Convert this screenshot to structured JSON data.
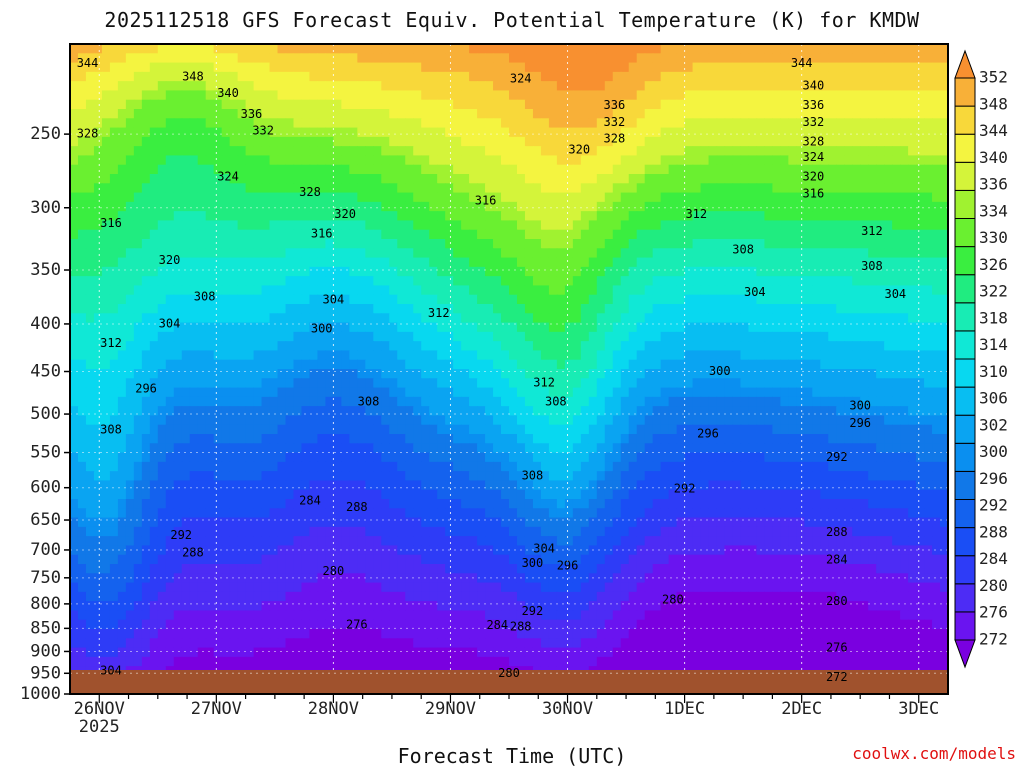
{
  "chart_data": {
    "type": "heatmap",
    "title": "2025112518 GFS Forecast Equiv. Potential Temperature (K) for KMDW",
    "xlabel": "Forecast Time (UTC)",
    "ylabel": "",
    "x_ticks": [
      "26NOV",
      "27NOV",
      "28NOV",
      "29NOV",
      "30NOV",
      "1DEC",
      "2DEC",
      "3DEC"
    ],
    "x_year_label": "2025",
    "x_range_days": [
      25.75,
      33.25
    ],
    "y_ticks": [
      250,
      300,
      350,
      400,
      450,
      500,
      550,
      600,
      650,
      700,
      750,
      800,
      850,
      900,
      950,
      1000
    ],
    "y_range_hPa": [
      200,
      1000
    ],
    "colorbar": {
      "levels": [
        272,
        276,
        280,
        284,
        288,
        292,
        296,
        300,
        302,
        306,
        310,
        314,
        318,
        322,
        326,
        330,
        334,
        336,
        340,
        344,
        348,
        352
      ],
      "colors": [
        "#7a00e0",
        "#6a14f0",
        "#4d2cf5",
        "#2e3cf7",
        "#1a4ef5",
        "#1462ee",
        "#1178e8",
        "#0a8ff0",
        "#0aa4f2",
        "#08bef2",
        "#08d8f0",
        "#10e8d6",
        "#18ecb4",
        "#20ec80",
        "#3aee40",
        "#6af030",
        "#a0f230",
        "#d4f43a",
        "#f4f440",
        "#f8d83a",
        "#f8b038",
        "#f89030"
      ]
    },
    "ground_color": "#a0522d",
    "contour_labels": [
      {
        "text": "344",
        "x": 25.9,
        "y": 210
      },
      {
        "text": "348",
        "x": 26.8,
        "y": 217
      },
      {
        "text": "340",
        "x": 27.1,
        "y": 226
      },
      {
        "text": "336",
        "x": 27.3,
        "y": 238
      },
      {
        "text": "332",
        "x": 27.4,
        "y": 248
      },
      {
        "text": "328",
        "x": 25.9,
        "y": 250
      },
      {
        "text": "324",
        "x": 27.1,
        "y": 278
      },
      {
        "text": "328",
        "x": 27.8,
        "y": 289
      },
      {
        "text": "320",
        "x": 28.1,
        "y": 305
      },
      {
        "text": "316",
        "x": 26.1,
        "y": 312
      },
      {
        "text": "316",
        "x": 27.9,
        "y": 320
      },
      {
        "text": "320",
        "x": 26.6,
        "y": 342
      },
      {
        "text": "324",
        "x": 29.6,
        "y": 218
      },
      {
        "text": "336",
        "x": 30.4,
        "y": 233
      },
      {
        "text": "332",
        "x": 30.4,
        "y": 243
      },
      {
        "text": "328",
        "x": 30.4,
        "y": 253
      },
      {
        "text": "320",
        "x": 30.1,
        "y": 260
      },
      {
        "text": "316",
        "x": 29.3,
        "y": 295
      },
      {
        "text": "312",
        "x": 31.1,
        "y": 305
      },
      {
        "text": "344",
        "x": 32.0,
        "y": 210
      },
      {
        "text": "340",
        "x": 32.1,
        "y": 222
      },
      {
        "text": "336",
        "x": 32.1,
        "y": 233
      },
      {
        "text": "332",
        "x": 32.1,
        "y": 243
      },
      {
        "text": "328",
        "x": 32.1,
        "y": 255
      },
      {
        "text": "324",
        "x": 32.1,
        "y": 265
      },
      {
        "text": "320",
        "x": 32.1,
        "y": 278
      },
      {
        "text": "316",
        "x": 32.1,
        "y": 290
      },
      {
        "text": "312",
        "x": 32.6,
        "y": 318
      },
      {
        "text": "308",
        "x": 32.6,
        "y": 347
      },
      {
        "text": "308",
        "x": 31.5,
        "y": 333
      },
      {
        "text": "304",
        "x": 32.8,
        "y": 372
      },
      {
        "text": "304",
        "x": 31.6,
        "y": 370
      },
      {
        "text": "308",
        "x": 26.9,
        "y": 374
      },
      {
        "text": "304",
        "x": 28.0,
        "y": 377
      },
      {
        "text": "312",
        "x": 28.9,
        "y": 390
      },
      {
        "text": "304",
        "x": 26.6,
        "y": 400
      },
      {
        "text": "300",
        "x": 27.9,
        "y": 405
      },
      {
        "text": "312",
        "x": 26.1,
        "y": 420
      },
      {
        "text": "300",
        "x": 31.3,
        "y": 450
      },
      {
        "text": "312",
        "x": 29.8,
        "y": 463
      },
      {
        "text": "296",
        "x": 26.4,
        "y": 470
      },
      {
        "text": "308",
        "x": 28.3,
        "y": 485
      },
      {
        "text": "308",
        "x": 29.9,
        "y": 485
      },
      {
        "text": "300",
        "x": 32.5,
        "y": 490
      },
      {
        "text": "308",
        "x": 26.1,
        "y": 520
      },
      {
        "text": "296",
        "x": 31.2,
        "y": 525
      },
      {
        "text": "296",
        "x": 32.5,
        "y": 512
      },
      {
        "text": "292",
        "x": 32.3,
        "y": 557
      },
      {
        "text": "308",
        "x": 29.7,
        "y": 583
      },
      {
        "text": "292",
        "x": 31.0,
        "y": 602
      },
      {
        "text": "284",
        "x": 27.8,
        "y": 620
      },
      {
        "text": "288",
        "x": 28.2,
        "y": 630
      },
      {
        "text": "288",
        "x": 32.3,
        "y": 670
      },
      {
        "text": "292",
        "x": 26.7,
        "y": 675
      },
      {
        "text": "304",
        "x": 29.8,
        "y": 698
      },
      {
        "text": "288",
        "x": 26.8,
        "y": 705
      },
      {
        "text": "300",
        "x": 29.7,
        "y": 724
      },
      {
        "text": "296",
        "x": 30.0,
        "y": 728
      },
      {
        "text": "284",
        "x": 32.3,
        "y": 718
      },
      {
        "text": "280",
        "x": 28.0,
        "y": 738
      },
      {
        "text": "280",
        "x": 30.9,
        "y": 792
      },
      {
        "text": "280",
        "x": 32.3,
        "y": 795
      },
      {
        "text": "292",
        "x": 29.7,
        "y": 815
      },
      {
        "text": "276",
        "x": 28.2,
        "y": 843
      },
      {
        "text": "284",
        "x": 29.4,
        "y": 844
      },
      {
        "text": "288",
        "x": 29.6,
        "y": 847
      },
      {
        "text": "276",
        "x": 32.3,
        "y": 892
      },
      {
        "text": "304",
        "x": 26.1,
        "y": 945
      },
      {
        "text": "280",
        "x": 29.5,
        "y": 950
      },
      {
        "text": "272",
        "x": 32.3,
        "y": 960
      }
    ]
  },
  "credit": "coolwx.com/models"
}
